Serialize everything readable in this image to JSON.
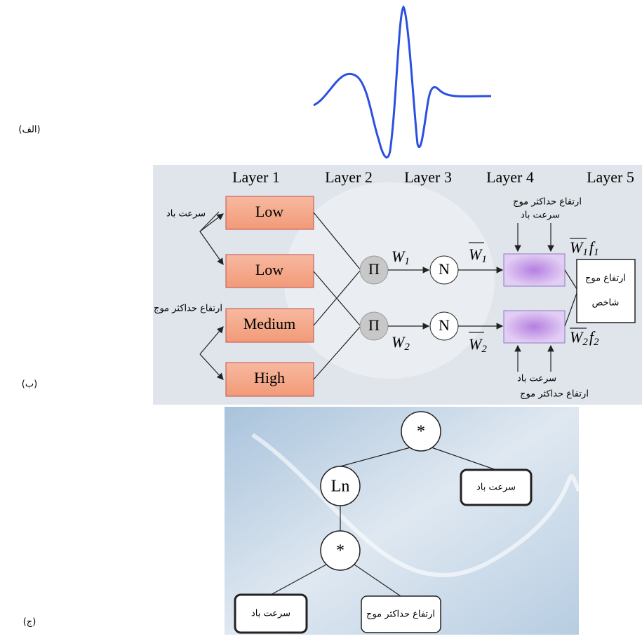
{
  "panel_labels": [
    "(الف)",
    "(ب)",
    "(ج)"
  ],
  "anfis": {
    "layers": [
      "Layer 1",
      "Layer 2",
      "Layer 3",
      "Layer 4",
      "Layer 5"
    ],
    "inputs": [
      "سرعت باد",
      "ارتفاع حداکثر موج"
    ],
    "membership": [
      "Low",
      "Low",
      "Medium",
      "High"
    ],
    "product_nodes": [
      "Π",
      "Π"
    ],
    "norm_nodes": [
      "N",
      "N"
    ],
    "weights": [
      {
        "symbol": "W",
        "sub": "1"
      },
      {
        "symbol": "W",
        "sub": "2"
      }
    ],
    "norm_weights": [
      {
        "symbol": "W",
        "sub": "1"
      },
      {
        "symbol": "W",
        "sub": "2"
      }
    ],
    "rule_outputs": [
      {
        "symbol": "W",
        "sub": "1",
        "f": "f",
        "fsub": "1"
      },
      {
        "symbol": "W",
        "sub": "2",
        "f": "f",
        "fsub": "2"
      }
    ],
    "rule_inputs_top": [
      "ارتفاع حداکثر موج",
      "سرعت باد"
    ],
    "rule_inputs_bottom": [
      "سرعت باد",
      "ارتفاع حداکثر موج"
    ],
    "output": [
      "ارتفاع موج",
      "شاخص"
    ]
  },
  "tree": {
    "nodes": [
      "*",
      "Ln",
      "*"
    ],
    "leaves": [
      "سرعت باد",
      "سرعت باد",
      "ارتفاع حداکثر موج"
    ]
  }
}
